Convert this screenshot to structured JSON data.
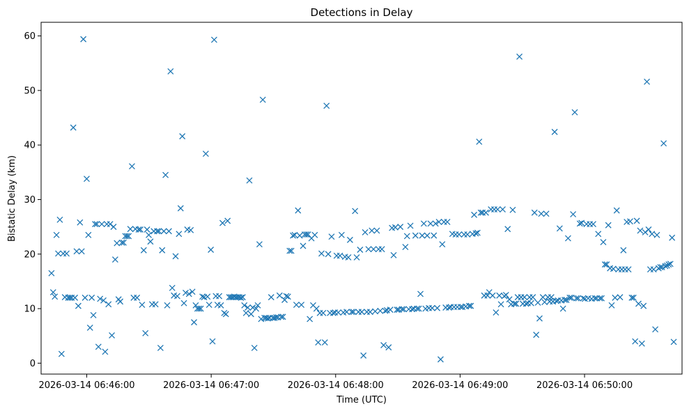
{
  "chart_data": {
    "type": "scatter",
    "title": "Detections in Delay",
    "xlabel": "Time (UTC)",
    "ylabel": "Bistatic Delay (km)",
    "marker": "x",
    "color": "#1f77b4",
    "grid": false,
    "x_start": "2026-03-14 06:45:43",
    "x_end": "2026-03-14 06:50:43",
    "xlim": [
      "2026-03-14 06:45:38",
      "2026-03-14 06:50:47"
    ],
    "ylim": [
      -2,
      62.5
    ],
    "x_ticks": [
      "2026-03-14 06:46:00",
      "2026-03-14 06:47:00",
      "2026-03-14 06:48:00",
      "2026-03-14 06:49:00",
      "2026-03-14 06:50:00"
    ],
    "y_ticks": [
      0,
      10,
      20,
      30,
      40,
      50,
      60
    ],
    "series": [
      {
        "y": [
          16.5,
          13,
          12.2,
          23.5,
          20.1,
          26.3,
          1.7,
          20.1,
          12.1,
          20.1,
          12,
          12,
          12,
          43.2,
          12,
          20.5,
          10.5,
          25.8,
          20.5,
          59.4,
          12,
          33.8,
          23.5,
          6.5,
          12,
          8.8,
          25.5,
          25.5,
          3,
          11.8,
          25.5,
          11.5,
          2.1,
          25.5,
          10.8,
          25.5,
          5.1,
          25,
          19,
          22,
          11.7,
          11.3,
          22.1,
          22.1,
          23.3,
          23.3,
          23.3,
          24.6,
          36.1,
          12,
          24.6,
          12,
          24.5,
          24.5,
          10.7,
          20.7,
          5.5,
          24.5,
          23.5,
          22.3,
          10.8,
          24.2,
          10.8,
          24.2,
          24.2,
          2.8,
          20.7,
          24.2,
          34.5,
          10.6,
          24.2,
          53.5,
          13.8,
          12.4,
          19.6,
          12.3,
          23.7,
          28.4,
          41.6,
          11,
          12.9,
          24.5,
          12.7,
          24.4,
          13.1,
          7.5,
          10.6,
          10,
          10,
          10,
          12.2,
          12.1,
          38.4,
          12.2,
          10.7,
          20.8,
          4,
          59.3,
          12.3,
          10.7,
          12.3,
          10.6,
          25.7,
          9.2,
          9,
          26.1,
          12.1,
          12.1,
          12.1,
          12.2,
          12.1,
          12.1,
          12.1,
          12,
          12.1,
          10.6,
          9.2,
          10.2,
          33.5,
          9,
          10.2,
          2.8,
          10,
          10.6,
          21.8,
          8.1,
          48.3,
          8.3,
          8.3,
          8.2,
          8.3,
          12.1,
          8.3,
          8.3,
          8.4,
          8.4,
          12.4,
          8.5,
          8.5,
          11.6,
          12.3,
          12.2,
          20.6,
          20.6,
          23.4,
          23.5,
          10.7,
          28,
          23.4,
          10.7,
          21.5,
          23.6,
          23.6,
          23.6,
          8.1,
          22.9,
          10.6,
          23.5,
          10,
          3.8,
          9.2,
          20.1,
          9.2,
          3.8,
          47.2,
          20,
          9.2,
          23.2,
          9.2,
          9.3,
          19.7,
          9.3,
          19.7,
          23.5,
          9.3,
          19.5,
          9.4,
          19.4,
          22.6,
          9.4,
          9.4,
          27.9,
          19.4,
          9.4,
          20.8,
          9.4,
          1.4,
          24,
          9.4,
          20.9,
          9.4,
          24.3,
          20.9,
          9.5,
          24.3,
          20.9,
          9.6,
          20.9,
          3.3,
          9.6,
          9.7,
          2.9,
          9.8,
          24.8,
          19.8,
          24.9,
          9.8,
          9.8,
          25,
          9.9,
          9.9,
          21.3,
          23.3,
          9.9,
          25.2,
          9.9,
          10,
          23.4,
          10,
          10,
          12.7,
          23.4,
          25.6,
          10,
          23.4,
          10.1,
          25.6,
          10.1,
          23.4,
          25.6,
          10.1,
          25.9,
          0.7,
          21.8,
          25.9,
          10.2,
          25.9,
          10.2,
          10.3,
          23.7,
          10.3,
          23.6,
          10.3,
          23.6,
          10.3,
          10.3,
          23.6,
          10.4,
          23.6,
          10.5,
          10.5,
          23.7,
          27.2,
          23.8,
          23.9,
          40.6,
          27.6,
          27.6,
          12.4,
          27.6,
          12.4,
          13,
          28.2,
          12.4,
          28.2,
          9.3,
          28.2,
          12.4,
          10.8,
          28.2,
          12.3,
          12.5,
          24.6,
          11.7,
          10.8,
          28.1,
          10.9,
          10.9,
          12.1,
          56.2,
          12.1,
          10.9,
          12.1,
          10.9,
          11,
          12.1,
          11,
          12.1,
          27.6,
          5.2,
          11.1,
          8.2,
          27.4,
          12.1,
          11.2,
          27.4,
          12.1,
          11.3,
          12.1,
          11.3,
          42.4,
          11.4,
          11.5,
          24.7,
          11.5,
          10,
          11.6,
          11.6,
          22.9,
          12,
          12,
          27.3,
          46,
          11.9,
          11.9,
          25.6,
          25.7,
          11.9,
          11.8,
          25.5,
          11.9,
          25.5,
          11.8,
          25.5,
          11.9,
          11.9,
          23.7,
          11.9,
          11.9,
          22.2,
          18.1,
          18.1,
          25.3,
          17.4,
          10.6,
          17.3,
          12,
          28,
          17.2,
          12.1,
          17.2,
          20.7,
          17.2,
          25.9,
          17.2,
          26,
          12,
          12,
          4,
          26.1,
          10.9,
          24.3,
          3.6,
          10.5,
          24,
          51.6,
          24.5,
          17.2,
          23.7,
          17.2,
          6.2,
          23.5,
          17.4,
          17.6,
          17.6,
          40.3,
          17.8,
          17.9,
          18.1,
          18.2,
          23,
          3.9
        ]
      }
    ]
  }
}
